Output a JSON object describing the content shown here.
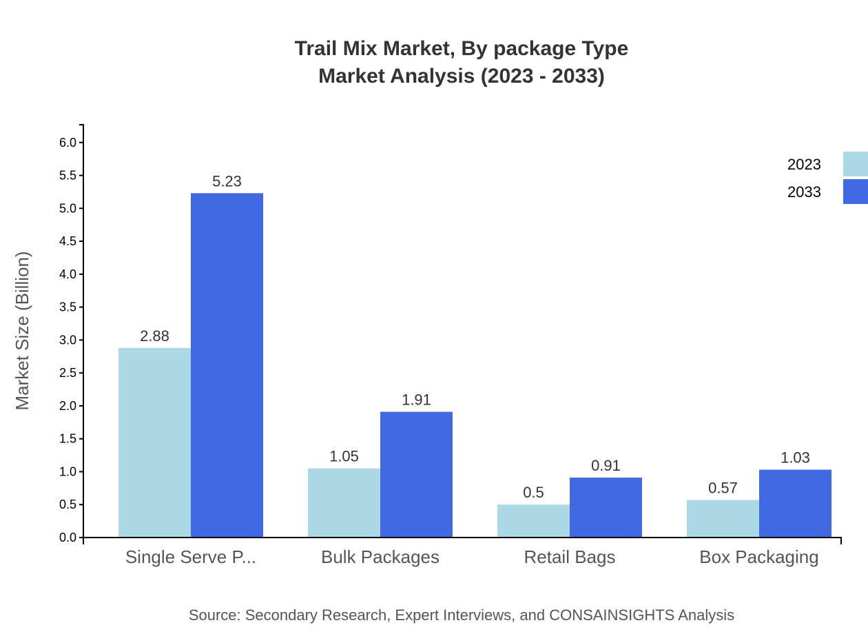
{
  "chart_data": {
    "type": "bar",
    "title": "Trail Mix Market, By package Type",
    "subtitle": "Market Analysis (2023 - 2033)",
    "xlabel": "",
    "ylabel": "Market Size (Billion)",
    "categories": [
      "Single Serve P...",
      "Bulk Packages",
      "Retail Bags",
      "Box Packaging"
    ],
    "series": [
      {
        "name": "2023",
        "color": "#ADD8E6",
        "values": [
          2.88,
          1.05,
          0.5,
          0.57
        ]
      },
      {
        "name": "2033",
        "color": "#4169E1",
        "values": [
          5.23,
          1.91,
          0.91,
          1.03
        ]
      }
    ],
    "ylim": [
      0,
      6.27
    ],
    "yticks": [
      "0.0",
      "0.5",
      "1.0",
      "1.5",
      "2.0",
      "2.5",
      "3.0",
      "3.5",
      "4.0",
      "4.5",
      "5.0",
      "5.5",
      "6.0"
    ],
    "grid": false,
    "legend_position": "top-right",
    "source": "Source: Secondary Research, Expert Interviews, and CONSAINSIGHTS Analysis"
  }
}
